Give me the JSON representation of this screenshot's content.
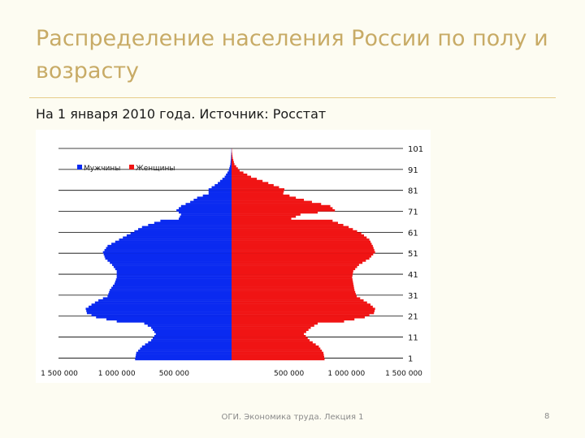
{
  "slide": {
    "title": "Распределение населения России по полу и возрасту",
    "subtitle": "На 1 января 2010 года. Источник: Росстат",
    "footer": "ОГИ. Экономика труда. Лекция 1",
    "page_number": "8"
  },
  "colors": {
    "men": "#0a2af0",
    "women": "#f01414",
    "title": "#c8ab66",
    "rule": "#e6cc8a"
  },
  "chart_data": {
    "type": "bar",
    "orientation": "horizontal-population-pyramid",
    "age_ticks": [
      "101",
      "91",
      "81",
      "71",
      "61",
      "51",
      "41",
      "31",
      "21",
      "11",
      "1"
    ],
    "x_tick_labels": [
      "1 500 000",
      "1 000 000",
      "500 000",
      "",
      "500 000",
      "1 000 000",
      "1 500 000"
    ],
    "xlim": [
      -1500000,
      1500000
    ],
    "age_range": [
      0,
      101
    ],
    "legend_position": "top-left",
    "series": [
      {
        "name": "Мужчины",
        "color": "#0a2af0",
        "age_points": [
          [
            0,
            840000
          ],
          [
            3,
            830000
          ],
          [
            6,
            780000
          ],
          [
            9,
            700000
          ],
          [
            12,
            660000
          ],
          [
            15,
            700000
          ],
          [
            17,
            760000
          ],
          [
            18,
            1000000
          ],
          [
            20,
            1180000
          ],
          [
            22,
            1260000
          ],
          [
            24,
            1270000
          ],
          [
            26,
            1220000
          ],
          [
            28,
            1160000
          ],
          [
            30,
            1080000
          ],
          [
            33,
            1060000
          ],
          [
            36,
            1020000
          ],
          [
            39,
            1000000
          ],
          [
            42,
            1000000
          ],
          [
            45,
            1040000
          ],
          [
            48,
            1100000
          ],
          [
            51,
            1120000
          ],
          [
            54,
            1080000
          ],
          [
            57,
            980000
          ],
          [
            60,
            880000
          ],
          [
            63,
            780000
          ],
          [
            66,
            620000
          ],
          [
            67,
            460000
          ],
          [
            69,
            440000
          ],
          [
            71,
            480000
          ],
          [
            73,
            440000
          ],
          [
            75,
            360000
          ],
          [
            77,
            300000
          ],
          [
            79,
            200000
          ],
          [
            81,
            200000
          ],
          [
            84,
            120000
          ],
          [
            87,
            60000
          ],
          [
            90,
            25000
          ],
          [
            93,
            10000
          ],
          [
            96,
            5000
          ],
          [
            99,
            2000
          ],
          [
            101,
            1000
          ]
        ]
      },
      {
        "name": "Женщины",
        "color": "#f01414",
        "age_points": [
          [
            0,
            810000
          ],
          [
            3,
            800000
          ],
          [
            6,
            760000
          ],
          [
            9,
            680000
          ],
          [
            12,
            630000
          ],
          [
            15,
            690000
          ],
          [
            17,
            750000
          ],
          [
            18,
            980000
          ],
          [
            20,
            1160000
          ],
          [
            22,
            1240000
          ],
          [
            24,
            1250000
          ],
          [
            26,
            1210000
          ],
          [
            28,
            1150000
          ],
          [
            30,
            1090000
          ],
          [
            33,
            1070000
          ],
          [
            36,
            1060000
          ],
          [
            39,
            1050000
          ],
          [
            42,
            1060000
          ],
          [
            45,
            1110000
          ],
          [
            48,
            1200000
          ],
          [
            51,
            1250000
          ],
          [
            54,
            1230000
          ],
          [
            57,
            1200000
          ],
          [
            60,
            1130000
          ],
          [
            63,
            1020000
          ],
          [
            66,
            880000
          ],
          [
            67,
            520000
          ],
          [
            69,
            600000
          ],
          [
            71,
            900000
          ],
          [
            73,
            860000
          ],
          [
            75,
            700000
          ],
          [
            77,
            560000
          ],
          [
            79,
            450000
          ],
          [
            81,
            460000
          ],
          [
            84,
            320000
          ],
          [
            87,
            170000
          ],
          [
            90,
            70000
          ],
          [
            93,
            25000
          ],
          [
            96,
            10000
          ],
          [
            99,
            3000
          ],
          [
            101,
            1500
          ]
        ]
      }
    ]
  }
}
